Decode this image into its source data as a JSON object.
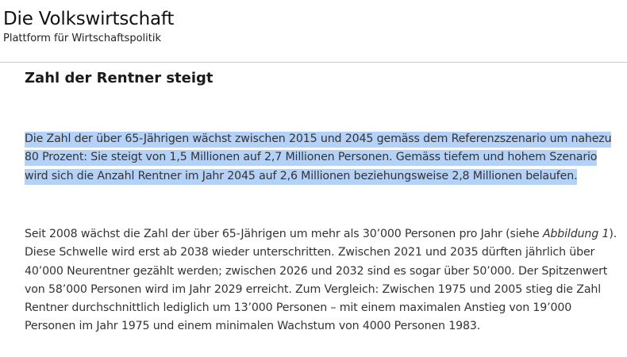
{
  "site": {
    "title": "Die Volkswirtschaft",
    "subtitle": "Plattform für Wirtschaftspolitik"
  },
  "article": {
    "heading": "Zahl der Rentner steigt",
    "paragraph1": "Die Zahl der über 65-Jährigen wächst zwischen 2015 und 2045 gemäss dem Referenzszenario um nahezu 80 Prozent: Sie steigt von 1,5 Millionen auf 2,7 Millionen Personen. Gemäss tiefem und hohem Szenario wird sich die Anzahl Rentner im Jahr 2045 auf 2,6 Millionen beziehungsweise 2,8 Millionen belaufen.",
    "paragraph2_part1": "Seit 2008 wächst die Zahl der über 65-Jährigen um mehr als 30’000 Personen pro Jahr (siehe ",
    "paragraph2_ref": "Abbildung 1",
    "paragraph2_part2": "). Diese Schwelle wird erst ab 2038 wieder unterschritten. Zwischen 2021 und 2035 dürften jährlich über 40’000 Neurentner gezählt werden; zwischen 2026 und 2032 sind es sogar über 50’000. Der Spitzenwert von 58’000 Personen wird im Jahr 2029 erreicht. Zum Vergleich: Zwischen 1975 und 2005 stieg die Zahl Rentner durchschnittlich lediglich um 13’000 Personen – mit einem maximalen Anstieg von 19’000 Personen im Jahr 1975 und einem minimalen Wachstum von 4000 Personen 1983."
  },
  "colors": {
    "selection_highlight": "#b4d2f7",
    "divider": "#c8c8c8",
    "text": "#333333"
  }
}
